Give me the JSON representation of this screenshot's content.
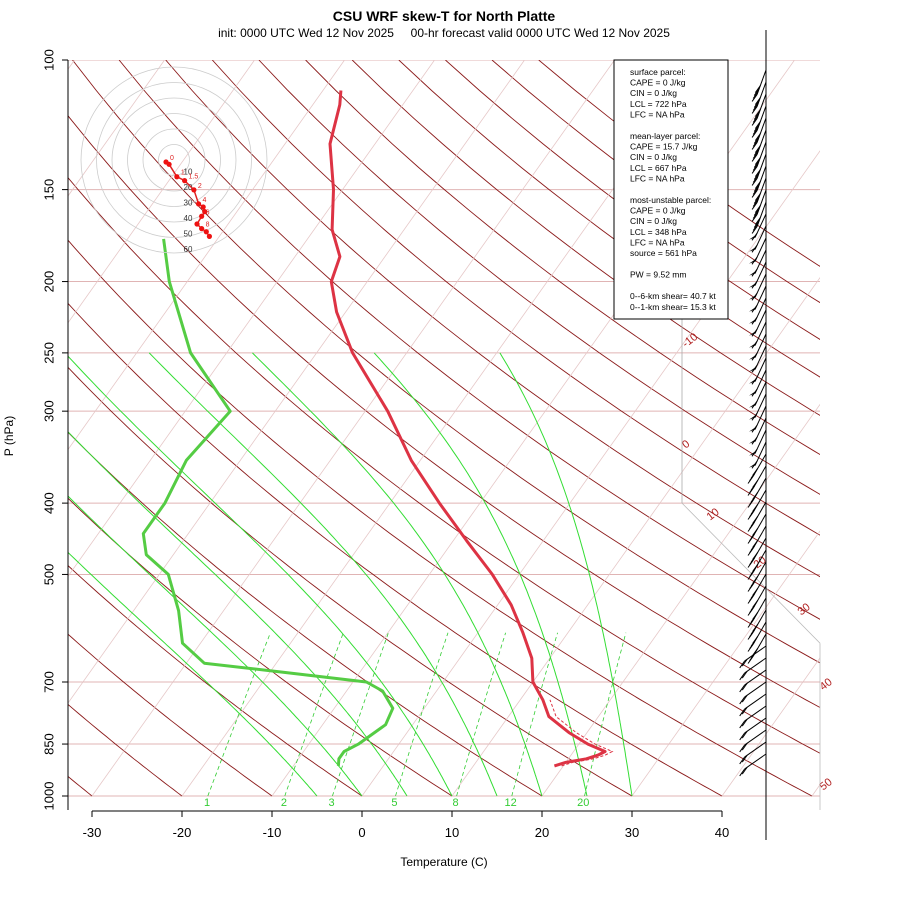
{
  "chart_data": {
    "type": "skew-t",
    "title": "CSU WRF skew-T for North Platte",
    "subtitle": "init: 0000 UTC Wed 12 Nov 2025     00-hr forecast valid 0000 UTC Wed 12 Nov 2025",
    "xlabel": "Temperature (C)",
    "ylabel": "P (hPa)",
    "x_ticks": [
      -30,
      -20,
      -10,
      0,
      10,
      20,
      30,
      40
    ],
    "p_ticks": [
      100,
      150,
      200,
      250,
      300,
      400,
      500,
      700,
      850,
      1000
    ],
    "xlim_at_1000hPa": [
      -33,
      45
    ],
    "plim": [
      1000,
      100
    ],
    "isotherm_labels": [
      -10,
      0,
      10,
      20,
      30,
      40,
      50
    ],
    "mixing_ratio_labels": [
      1,
      2,
      3,
      5,
      8,
      12,
      20
    ],
    "temperature_profile": [
      {
        "p": 910,
        "t": 19.0
      },
      {
        "p": 900,
        "t": 20.0
      },
      {
        "p": 890,
        "t": 22.0
      },
      {
        "p": 880,
        "t": 23.0
      },
      {
        "p": 870,
        "t": 23.5
      },
      {
        "p": 850,
        "t": 21.0
      },
      {
        "p": 820,
        "t": 18.0
      },
      {
        "p": 780,
        "t": 14.5
      },
      {
        "p": 740,
        "t": 12.5
      },
      {
        "p": 700,
        "t": 10.0
      },
      {
        "p": 650,
        "t": 8.0
      },
      {
        "p": 600,
        "t": 5.0
      },
      {
        "p": 550,
        "t": 1.5
      },
      {
        "p": 500,
        "t": -3.0
      },
      {
        "p": 450,
        "t": -8.5
      },
      {
        "p": 400,
        "t": -14.5
      },
      {
        "p": 350,
        "t": -21.0
      },
      {
        "p": 300,
        "t": -27.5
      },
      {
        "p": 250,
        "t": -36.0
      },
      {
        "p": 220,
        "t": -41.0
      },
      {
        "p": 200,
        "t": -44.0
      },
      {
        "p": 185,
        "t": -45.0
      },
      {
        "p": 170,
        "t": -48.0
      },
      {
        "p": 150,
        "t": -51.0
      },
      {
        "p": 130,
        "t": -55.0
      },
      {
        "p": 115,
        "t": -57.0
      },
      {
        "p": 110,
        "t": -58.0
      }
    ],
    "dewpoint_profile": [
      {
        "p": 910,
        "t": -5.0
      },
      {
        "p": 890,
        "t": -5.5
      },
      {
        "p": 870,
        "t": -5.5
      },
      {
        "p": 850,
        "t": -4.5
      },
      {
        "p": 800,
        "t": -3.0
      },
      {
        "p": 760,
        "t": -3.5
      },
      {
        "p": 720,
        "t": -6.0
      },
      {
        "p": 700,
        "t": -8.5
      },
      {
        "p": 680,
        "t": -18.0
      },
      {
        "p": 660,
        "t": -28.0
      },
      {
        "p": 620,
        "t": -32.0
      },
      {
        "p": 560,
        "t": -35.0
      },
      {
        "p": 500,
        "t": -39.0
      },
      {
        "p": 470,
        "t": -43.0
      },
      {
        "p": 440,
        "t": -45.0
      },
      {
        "p": 400,
        "t": -45.0
      },
      {
        "p": 350,
        "t": -46.0
      },
      {
        "p": 300,
        "t": -45.0
      },
      {
        "p": 250,
        "t": -54.0
      },
      {
        "p": 200,
        "t": -62.0
      },
      {
        "p": 175,
        "t": -66.0
      }
    ],
    "hodograph_labels": {
      "speed_rings": [
        10,
        20,
        30,
        40,
        50,
        60
      ],
      "height_km": [
        "0",
        "1",
        "1.5",
        "2",
        "4",
        "6",
        "8"
      ]
    },
    "stats": {
      "surface": [
        "surface parcel:",
        "CAPE = 0 J/kg",
        "CIN = 0 J/kg",
        "LCL = 722 hPa",
        "LFC = NA hPa"
      ],
      "mean_layer": [
        "mean-layer parcel:",
        "CAPE = 15.7 J/kg",
        "CIN = 0 J/kg",
        "LCL = 667 hPa",
        "LFC = NA hPa"
      ],
      "most_unstable": [
        "most-unstable parcel:",
        "CAPE = 0 J/kg",
        "CIN = 0 J/kg",
        "LCL = 348 hPa",
        "LFC = NA hPa",
        "source = 561 hPa"
      ],
      "pw": "PW =  9.52 mm",
      "shear": [
        "0--6-km shear= 40.7 kt",
        "0--1-km shear= 15.3 kt"
      ]
    }
  }
}
